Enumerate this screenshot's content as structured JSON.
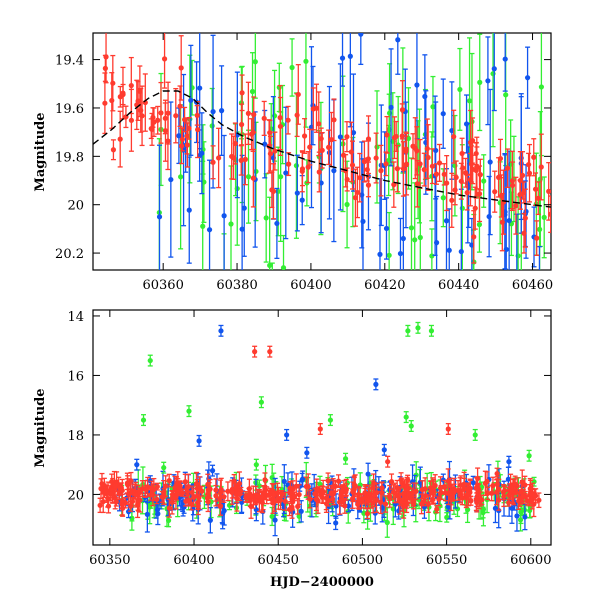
{
  "chart_data": [
    {
      "type": "scatter",
      "title": "",
      "xlabel": "",
      "ylabel": "Magnitude",
      "xlim": [
        60341,
        60465
      ],
      "ylim": [
        20.27,
        19.29
      ],
      "y_inverted": true,
      "grid": false,
      "xticks": [
        "60360",
        "60380",
        "60400",
        "60420",
        "60440",
        "60460"
      ],
      "yticks": [
        "19.4",
        "19.6",
        "19.8",
        "20",
        "20.2"
      ],
      "colors": {
        "red": "#ff3b2f",
        "green": "#33ee33",
        "blue": "#1155ee",
        "model": "#000000"
      },
      "model_curve": {
        "style": "dashed",
        "x": [
          60341,
          60346,
          60351,
          60356,
          60360,
          60364,
          60368,
          60372,
          60376,
          60382,
          60390,
          60400,
          60410,
          60420,
          60430,
          60440,
          60450,
          60460,
          60465
        ],
        "y": [
          19.75,
          19.69,
          19.62,
          19.56,
          19.53,
          19.53,
          19.56,
          19.62,
          19.67,
          19.72,
          19.77,
          19.82,
          19.86,
          19.9,
          19.93,
          19.96,
          19.98,
          20.0,
          20.01
        ]
      },
      "series": [
        {
          "color": "red",
          "range": [
            60344,
            60465
          ],
          "center_start": 19.6,
          "center_end": 19.95,
          "scatter": 0.1,
          "err": 0.08,
          "count": 170
        },
        {
          "color": "green",
          "range": [
            60358,
            60465
          ],
          "center_start": 19.75,
          "center_end": 19.95,
          "scatter": 0.25,
          "err": 0.18,
          "count": 80
        },
        {
          "color": "blue",
          "range": [
            60358,
            60465
          ],
          "center_start": 19.75,
          "center_end": 19.95,
          "scatter": 0.25,
          "err": 0.2,
          "count": 80
        }
      ]
    },
    {
      "type": "scatter",
      "title": "",
      "xlabel": "HJD−2400000",
      "ylabel": "Magnitude",
      "xlim": [
        60340,
        60612
      ],
      "ylim": [
        21.7,
        13.8
      ],
      "y_inverted": true,
      "grid": false,
      "xticks": [
        "60350",
        "60400",
        "60450",
        "60500",
        "60550",
        "60600"
      ],
      "yticks": [
        "14",
        "16",
        "18",
        "20"
      ],
      "colors": {
        "red": "#ff3b2f",
        "green": "#33ee33",
        "blue": "#1155ee"
      },
      "bulk": [
        {
          "color": "red",
          "range": [
            60344,
            60605
          ],
          "center": 20.0,
          "scatter": 0.22,
          "err": 0.25,
          "count": 360
        },
        {
          "color": "green",
          "range": [
            60355,
            60605
          ],
          "center": 20.1,
          "scatter": 0.35,
          "err": 0.35,
          "count": 130
        },
        {
          "color": "blue",
          "range": [
            60355,
            60600
          ],
          "center": 20.1,
          "scatter": 0.35,
          "err": 0.35,
          "count": 130
        }
      ],
      "outliers": [
        {
          "x": 60416,
          "y": 14.5,
          "color": "blue"
        },
        {
          "x": 60436,
          "y": 15.2,
          "color": "red"
        },
        {
          "x": 60445,
          "y": 15.2,
          "color": "red"
        },
        {
          "x": 60374,
          "y": 15.5,
          "color": "green"
        },
        {
          "x": 60527,
          "y": 14.5,
          "color": "green"
        },
        {
          "x": 60533,
          "y": 14.4,
          "color": "green"
        },
        {
          "x": 60541,
          "y": 14.5,
          "color": "green"
        },
        {
          "x": 60508,
          "y": 16.3,
          "color": "blue"
        },
        {
          "x": 60370,
          "y": 17.5,
          "color": "green"
        },
        {
          "x": 60397,
          "y": 17.2,
          "color": "green"
        },
        {
          "x": 60440,
          "y": 16.9,
          "color": "green"
        },
        {
          "x": 60481,
          "y": 17.5,
          "color": "green"
        },
        {
          "x": 60526,
          "y": 17.4,
          "color": "green"
        },
        {
          "x": 60529,
          "y": 17.7,
          "color": "green"
        },
        {
          "x": 60475,
          "y": 17.8,
          "color": "red"
        },
        {
          "x": 60551,
          "y": 17.8,
          "color": "red"
        },
        {
          "x": 60567,
          "y": 18.0,
          "color": "green"
        },
        {
          "x": 60403,
          "y": 18.2,
          "color": "blue"
        },
        {
          "x": 60455,
          "y": 18.0,
          "color": "blue"
        },
        {
          "x": 60513,
          "y": 18.5,
          "color": "blue"
        },
        {
          "x": 60599,
          "y": 18.7,
          "color": "green"
        },
        {
          "x": 60587,
          "y": 18.9,
          "color": "blue"
        },
        {
          "x": 60515,
          "y": 18.9,
          "color": "red"
        },
        {
          "x": 60490,
          "y": 18.8,
          "color": "green"
        },
        {
          "x": 60382,
          "y": 19.1,
          "color": "green"
        },
        {
          "x": 60411,
          "y": 19.2,
          "color": "blue"
        },
        {
          "x": 60437,
          "y": 19.0,
          "color": "green"
        },
        {
          "x": 60366,
          "y": 19.0,
          "color": "blue"
        },
        {
          "x": 60467,
          "y": 18.6,
          "color": "blue"
        },
        {
          "x": 60580,
          "y": 19.3,
          "color": "red"
        }
      ]
    }
  ]
}
